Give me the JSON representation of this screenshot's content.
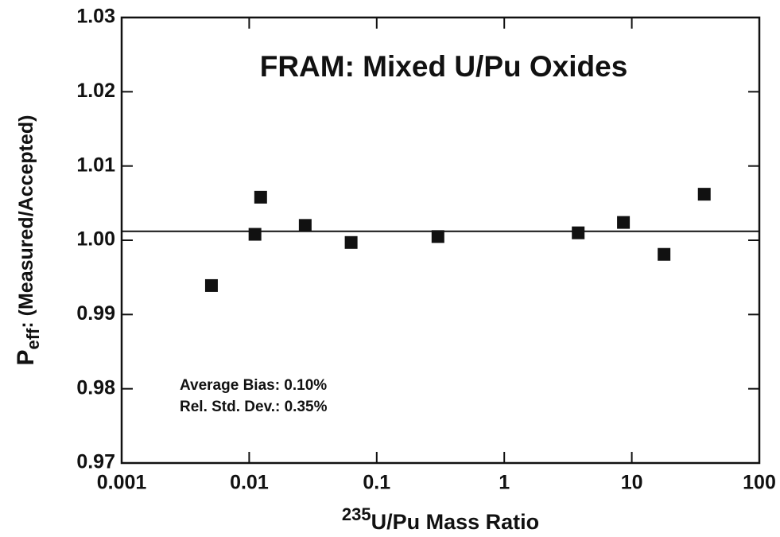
{
  "chart_data": {
    "type": "scatter",
    "title": "FRAM:  Mixed U/Pu Oxides",
    "x_label": {
      "sup": "235",
      "text": "U/Pu Mass Ratio"
    },
    "y_label": {
      "main": "P",
      "sub": "eff",
      "rest": ":  (Measured/Accepted)"
    },
    "annotations": [
      "Average Bias:  0.10%",
      "Rel. Std. Dev.:  0.35%"
    ],
    "x": [
      0.00506,
      0.0111,
      0.0123,
      0.0275,
      0.063,
      0.302,
      3.8,
      8.6,
      17.9,
      37
    ],
    "values": [
      0.9939,
      1.0008,
      1.0058,
      1.002,
      0.9997,
      1.0005,
      1.001,
      1.0024,
      0.9981,
      1.0062
    ],
    "reference_line": 1.0012,
    "color": "#111111",
    "xscale": "log",
    "xlim": [
      0.001,
      100
    ],
    "xticks": [
      0.001,
      0.01,
      0.1,
      1,
      10,
      100
    ],
    "ylim": [
      0.97,
      1.03
    ],
    "yticks": [
      1.03,
      1.02,
      1.01,
      {
        "value": 1,
        "label": "1.00"
      },
      0.99,
      0.98,
      0.97
    ],
    "grid": false
  }
}
